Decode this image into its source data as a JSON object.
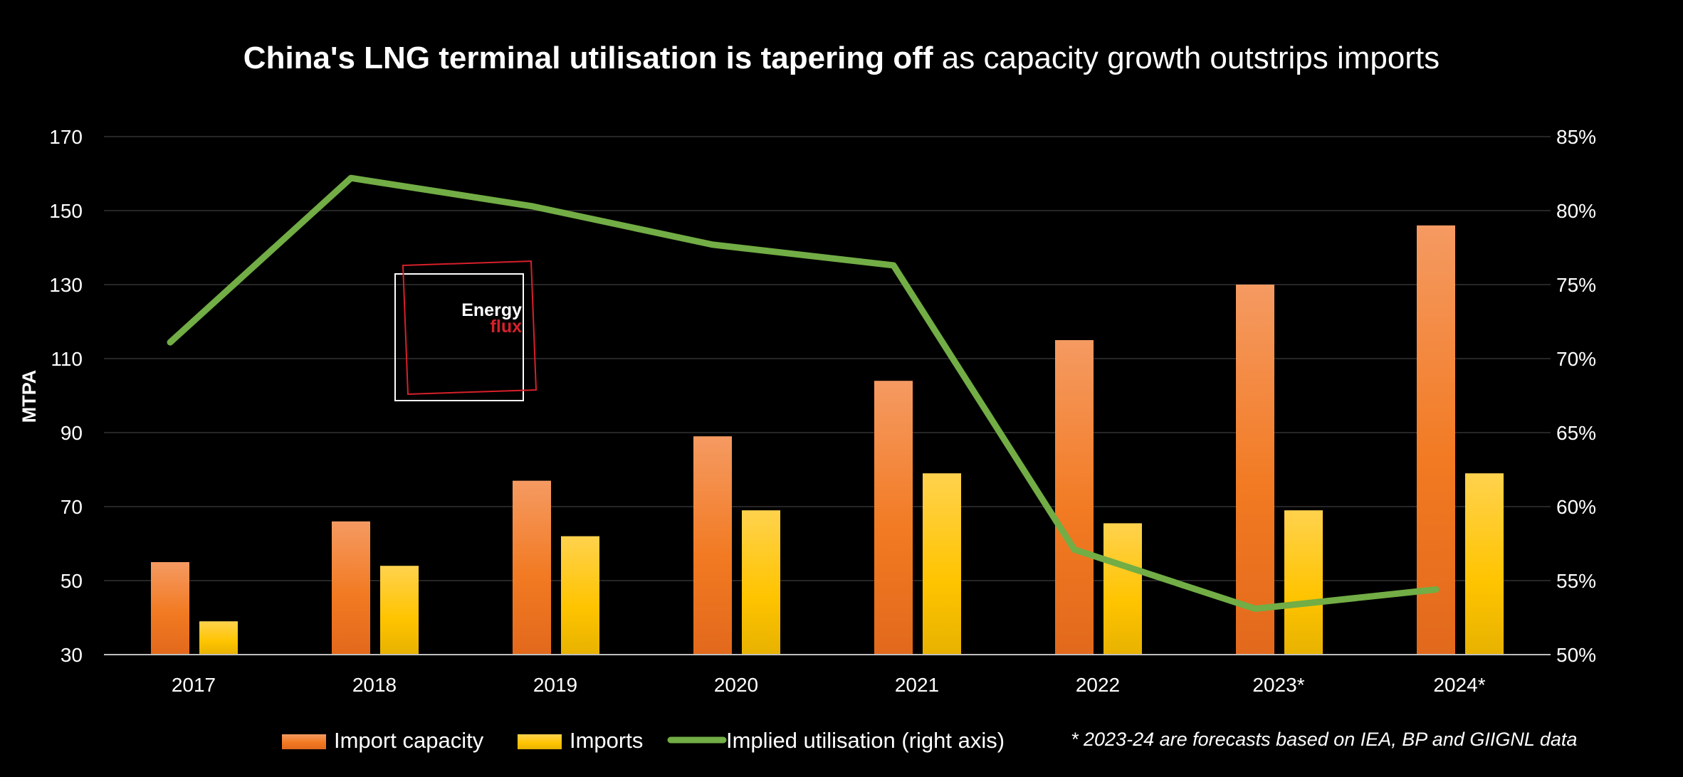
{
  "chart_data": {
    "type": "bar",
    "title": {
      "bold": "China's LNG terminal utilisation is tapering off",
      "regular": " as capacity growth outstrips imports"
    },
    "categories": [
      "2017",
      "2018",
      "2019",
      "2020",
      "2021",
      "2022",
      "2023*",
      "2024*"
    ],
    "series": [
      {
        "name": "Import capacity",
        "kind": "bar",
        "axis": "left",
        "color": "#F07A2A",
        "values": [
          55,
          66,
          77,
          89,
          104,
          115,
          130,
          146
        ]
      },
      {
        "name": "Imports",
        "kind": "bar",
        "axis": "left",
        "color": "#FFC61A",
        "values": [
          39,
          54,
          62,
          69,
          79,
          65.5,
          69,
          79
        ]
      },
      {
        "name": "Implied utilisation (right axis)",
        "kind": "line",
        "axis": "right",
        "color": "#72AD45",
        "values": [
          71.1,
          82.2,
          80.3,
          77.7,
          76.3,
          57.1,
          53.1,
          54.4
        ]
      }
    ],
    "ylabel": "MTPA",
    "ylim": [
      30,
      170
    ],
    "yticks": [
      "30",
      "50",
      "70",
      "90",
      "110",
      "130",
      "150",
      "170"
    ],
    "y2lim": [
      50,
      85
    ],
    "y2ticks": [
      "50%",
      "55%",
      "60%",
      "65%",
      "70%",
      "75%",
      "80%",
      "85%"
    ],
    "grid": true,
    "legend_position": "bottom",
    "footnote": "* 2023-24 are forecasts based on IEA, BP and GIIGNL data",
    "logo": {
      "line1": "Energy",
      "line2": "flux"
    }
  }
}
